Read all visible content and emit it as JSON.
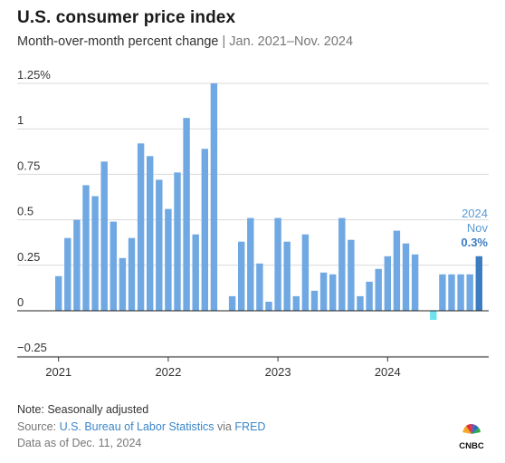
{
  "header": {
    "title": "U.S. consumer price index",
    "subtitle_main": "Month-over-month percent change",
    "subtitle_sep": "|",
    "subtitle_range": "Jan. 2021–Nov. 2024"
  },
  "footer": {
    "note": "Note: Seasonally adjusted",
    "source_prefix": "Source: ",
    "source_name": "U.S. Bureau of Labor Statistics",
    "source_mid": " via ",
    "source_link": "FRED",
    "as_of": "Data as of Dec. 11, 2024",
    "logo_text": "CNBC"
  },
  "colors": {
    "bar": "#6fa8e2",
    "highlight": "#3d7cc1",
    "negative": "#6ee3ee",
    "grid": "#d9d9d9",
    "zero_line": "#222222"
  },
  "chart_data": {
    "type": "bar",
    "x_start": "2021-01",
    "x_end": "2024-11",
    "x_tick_labels": [
      "2021",
      "2022",
      "2023",
      "2024"
    ],
    "y_tick_labels": [
      "1.25%",
      "1",
      "0.75",
      "0.5",
      "0.25",
      "0",
      "−0.25"
    ],
    "y_tick_values": [
      1.25,
      1,
      0.75,
      0.5,
      0.25,
      0,
      -0.25
    ],
    "ylim": [
      -0.25,
      1.25
    ],
    "series": [
      {
        "values": [
          0.19,
          0.4,
          0.5,
          0.69,
          0.63,
          0.82,
          0.49,
          0.29,
          0.4,
          0.92,
          0.85,
          0.72,
          0.56,
          0.76,
          1.06,
          0.42,
          0.89,
          1.25,
          0.0,
          0.08,
          0.38,
          0.51,
          0.26,
          0.05,
          0.51,
          0.38,
          0.08,
          0.42,
          0.11,
          0.21,
          0.2,
          0.51,
          0.39,
          0.08,
          0.16,
          0.23,
          0.3,
          0.44,
          0.37,
          0.31,
          0.0,
          -0.05,
          0.2,
          0.2,
          0.2,
          0.2,
          0.3
        ]
      }
    ],
    "annotation": {
      "year": "2024",
      "month": "Nov",
      "value": "0.3%"
    },
    "grid": true
  }
}
